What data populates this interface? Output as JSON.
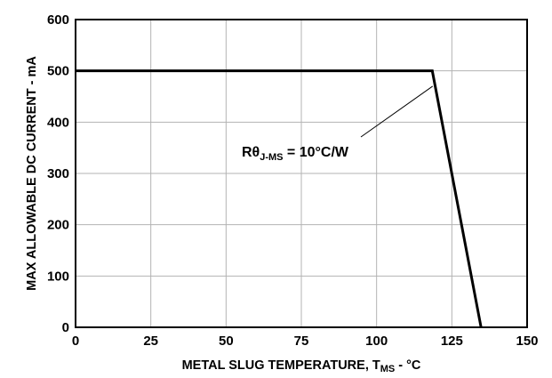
{
  "chart_data": {
    "type": "line",
    "xlabel_main": "METAL SLUG TEMPERATURE, T",
    "xlabel_sub": "MS",
    "xlabel_tail": " - °C",
    "ylabel": "MAX ALLOWABLE DC CURRENT - mA",
    "xlim": [
      0,
      150
    ],
    "ylim": [
      0,
      600
    ],
    "xticks": [
      0,
      25,
      50,
      75,
      100,
      125,
      150
    ],
    "yticks": [
      0,
      100,
      200,
      300,
      400,
      500,
      600
    ],
    "grid": true,
    "series": [
      {
        "x": [
          0,
          118.5,
          134.7
        ],
        "y": [
          500,
          500,
          0
        ]
      }
    ],
    "annotation": {
      "main": "Rθ",
      "sub": "J-MS",
      "tail": " = 10°C/W",
      "point": [
        119.5,
        470
      ]
    }
  }
}
